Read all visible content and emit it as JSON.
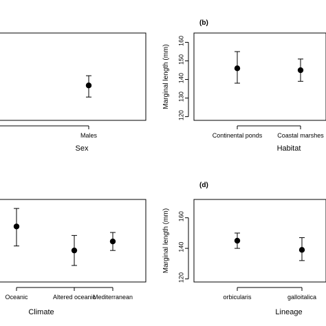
{
  "chart_data": [
    {
      "type": "scatter",
      "panel_label": "",
      "xlabel": "Sex",
      "ylabel": "",
      "categories": [
        "es",
        "Males"
      ],
      "points": [
        {
          "category": "Males",
          "mean": 138,
          "lower": 132,
          "upper": 143
        }
      ],
      "yticks": [],
      "ylim": [
        120,
        165
      ]
    },
    {
      "type": "scatter",
      "panel_label": "(b)",
      "xlabel": "Habitat",
      "ylabel": "Marginal length (mm)",
      "categories": [
        "Continental ponds",
        "Coastal marshes"
      ],
      "points": [
        {
          "category": "Continental ponds",
          "mean": 146,
          "lower": 138,
          "upper": 155
        },
        {
          "category": "Coastal marshes",
          "mean": 145,
          "lower": 139,
          "upper": 151
        }
      ],
      "yticks": [
        120,
        130,
        140,
        150,
        160
      ],
      "ylim": [
        118,
        165
      ]
    },
    {
      "type": "scatter",
      "panel_label": "",
      "xlabel": "Climate",
      "ylabel": "",
      "categories": [
        "Oceanic",
        "Altered oceanic",
        "Mediterranean"
      ],
      "points": [
        {
          "category": "Oceanic",
          "mean": 152,
          "lower": 139,
          "upper": 164
        },
        {
          "category": "Altered oceanic",
          "mean": 136,
          "lower": 126,
          "upper": 146
        },
        {
          "category": "Mediterranean",
          "mean": 142,
          "lower": 136,
          "upper": 148
        }
      ],
      "yticks": [],
      "ylim": [
        115,
        170
      ]
    },
    {
      "type": "scatter",
      "panel_label": "(d)",
      "xlabel": "Lineage",
      "ylabel": "Marginal length (mm)",
      "categories": [
        "orbicularis",
        "galloitalica"
      ],
      "points": [
        {
          "category": "orbicularis",
          "mean": 145,
          "lower": 140,
          "upper": 150
        },
        {
          "category": "galloitalica",
          "mean": 139,
          "lower": 132,
          "upper": 147
        }
      ],
      "yticks": [
        120,
        140,
        160
      ],
      "ylim": [
        118,
        172
      ]
    }
  ]
}
